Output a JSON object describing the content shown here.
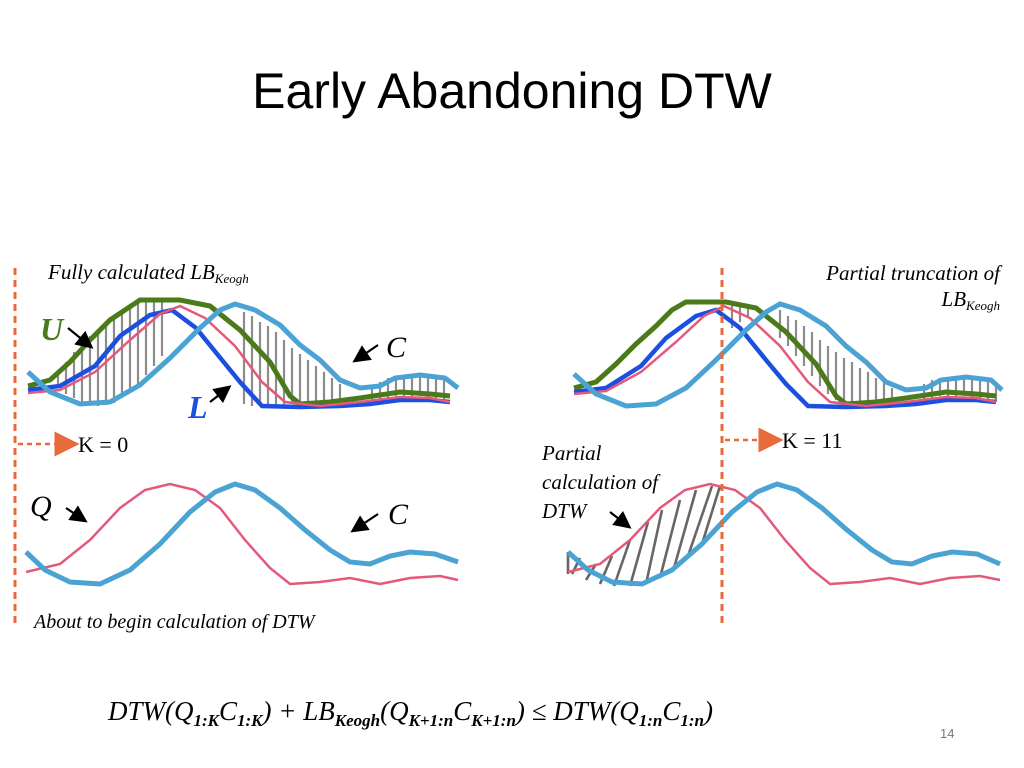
{
  "title": "Early Abandoning DTW",
  "page_number": "14",
  "colors": {
    "U": "#4a7a1a",
    "L": "#1c4fe0",
    "Q": "#e4597a",
    "C": "#4aa3d3",
    "hatch": "#8c8c8c",
    "marker": "#e86a3a"
  },
  "top_left": {
    "caption": "Fully calculated LB",
    "caption_sub": "Keogh",
    "label_u": "U",
    "label_l": "L",
    "label_c": "C"
  },
  "top_right": {
    "caption_line1": "Partial truncation of",
    "caption_line2": "LB",
    "caption_sub": "Keogh"
  },
  "markers": {
    "left_k": "K = 0",
    "right_k": "K = 11"
  },
  "bottom_left": {
    "label_q": "Q",
    "label_c": "C",
    "caption": "About to begin calculation of DTW"
  },
  "bottom_right": {
    "caption_line1": "Partial",
    "caption_line2": "calculation of",
    "caption_line3": "DTW"
  },
  "formula": {
    "t1": "DTW(Q",
    "s1": "1:K",
    "t2": "C",
    "s2": "1:K",
    "t3": ") + LB",
    "s3": "Keogh",
    "t4": "(Q",
    "s4": "K+1:n",
    "t5": "C",
    "s5": "K+1:n",
    "t6": ") ≤ DTW(Q",
    "s6": "1:n",
    "t7": "C",
    "s7": "1:n",
    "t8": ")"
  }
}
